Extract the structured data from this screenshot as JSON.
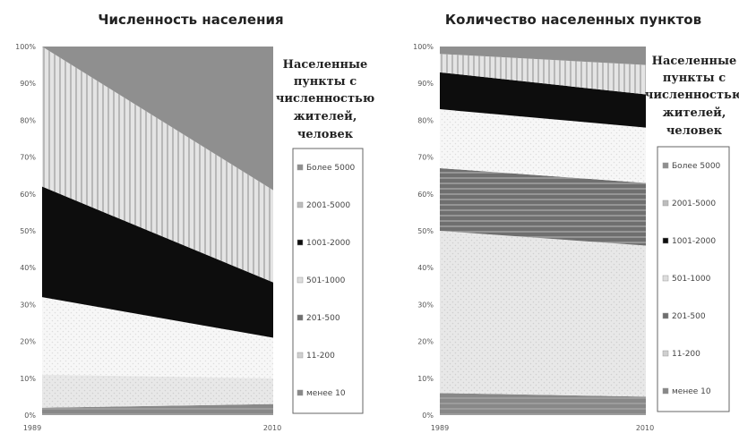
{
  "chart_data": [
    {
      "type": "area",
      "stacked": true,
      "normalized": true,
      "title": "Численность населения",
      "x": [
        "1989",
        "2010"
      ],
      "yticks": [
        "0%",
        "10%",
        "20%",
        "30%",
        "40%",
        "50%",
        "60%",
        "70%",
        "80%",
        "90%",
        "100%"
      ],
      "ylim": [
        0,
        100
      ],
      "series": [
        {
          "name": "менее 10",
          "values": [
            2,
            3
          ]
        },
        {
          "name": "11-200",
          "values": [
            9,
            7
          ]
        },
        {
          "name": "201-500",
          "values": [
            0,
            0
          ]
        },
        {
          "name": "501-1000",
          "values": [
            21,
            11
          ]
        },
        {
          "name": "1001-2000",
          "values": [
            30,
            15
          ]
        },
        {
          "name": "2001-5000",
          "values": [
            38,
            25
          ]
        },
        {
          "name": "Более 5000",
          "values": [
            0,
            39
          ]
        }
      ],
      "legend_title": [
        "Населенные",
        "пункты с",
        "численностью",
        "жителей,",
        "человек"
      ],
      "legend_placement": "right"
    },
    {
      "type": "area",
      "stacked": true,
      "normalized": true,
      "title": "Количество населенных пунктов",
      "x": [
        "1989",
        "2010"
      ],
      "yticks": [
        "0%",
        "10%",
        "20%",
        "30%",
        "40%",
        "50%",
        "60%",
        "70%",
        "80%",
        "90%",
        "100%"
      ],
      "ylim": [
        0,
        100
      ],
      "series": [
        {
          "name": "менее 10",
          "values": [
            6,
            5
          ]
        },
        {
          "name": "11-200",
          "values": [
            44,
            41
          ]
        },
        {
          "name": "201-500",
          "values": [
            17,
            17
          ]
        },
        {
          "name": "501-1000",
          "values": [
            16,
            15
          ]
        },
        {
          "name": "1001-2000",
          "values": [
            10,
            9
          ]
        },
        {
          "name": "2001-5000",
          "values": [
            5,
            8
          ]
        },
        {
          "name": "Более 5000",
          "values": [
            2,
            5
          ]
        }
      ],
      "legend_title": [
        "Населенные",
        "пункты с",
        "численностью",
        "жителей,",
        "человек"
      ],
      "legend_placement": "right"
    }
  ],
  "styles": {
    "менее 10": {
      "fill": "#888888",
      "pattern": "hstripe",
      "stripe": "#9c9c9c"
    },
    "11-200": {
      "fill": "#e8e8e8",
      "pattern": "dots",
      "stripe": "#cfcfcf"
    },
    "201-500": {
      "fill": "#6f6f6f",
      "pattern": "hstripe",
      "stripe": "#959595"
    },
    "501-1000": {
      "fill": "#f7f7f7",
      "pattern": "dots",
      "stripe": "#dddddd"
    },
    "1001-2000": {
      "fill": "#0d0d0d",
      "pattern": "solid",
      "stripe": "#0d0d0d"
    },
    "2001-5000": {
      "fill": "#e4e4e4",
      "pattern": "vstripe",
      "stripe": "#b8b8b8"
    },
    "Более 5000": {
      "fill": "#8f8f8f",
      "pattern": "solid",
      "stripe": "#8f8f8f"
    }
  }
}
